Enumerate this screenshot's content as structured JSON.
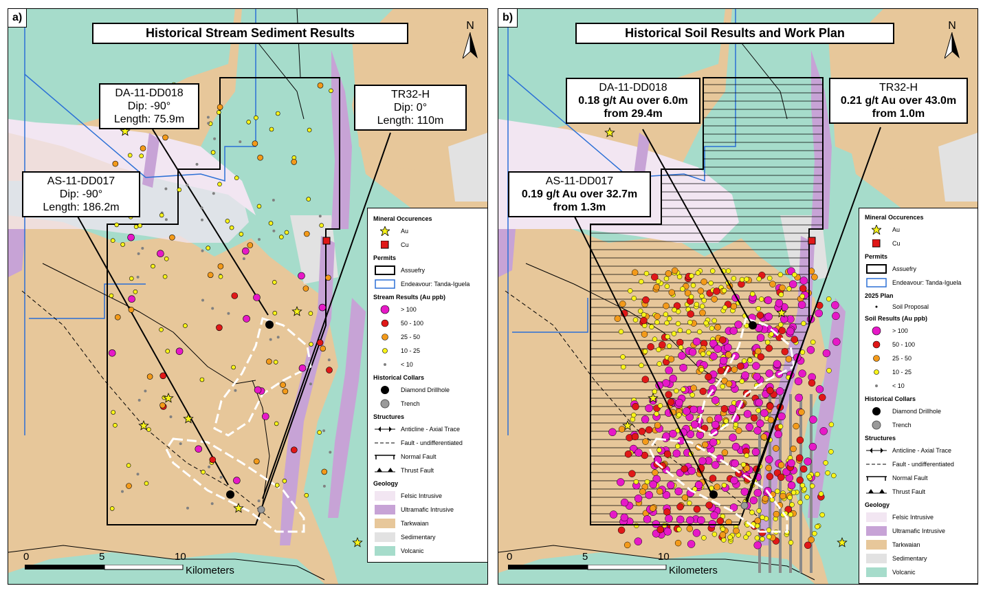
{
  "colors": {
    "tarkwaian": "#e7c79a",
    "volcanic": "#a6dccb",
    "felsic": "#f2e6f2",
    "ultramafic": "#c7a3d6",
    "sedimentary": "#e2e2e2",
    "gt100": "#e619c7",
    "c50_100": "#e01818",
    "c25_50": "#f39a1a",
    "c10_25": "#f8f41a",
    "lt10": "#808080",
    "permit_endeavour": "#2a6fd6"
  },
  "panel_a": {
    "tag": "a)",
    "title": "Historical Stream Sediment Results",
    "north": "N",
    "callouts": {
      "da": {
        "name": "DA-11-DD018",
        "l2": "Dip: -90°",
        "l3": "Length: 75.9m"
      },
      "tr": {
        "name": "TR32-H",
        "l2": "Dip: 0°",
        "l3": "Length: 110m"
      },
      "as": {
        "name": "AS-11-DD017",
        "l2": "Dip: -90°",
        "l3": "Length: 186.2m"
      }
    },
    "legend": {
      "mineral_header": "Mineral Occurences",
      "au": "Au",
      "cu": "Cu",
      "permits_header": "Permits",
      "assuefry": "Assuefry",
      "endeavour": "Endeavour: Tanda-Iguela",
      "results_header": "Stream Results (Au ppb)",
      "r1": "> 100",
      "r2": "50 - 100",
      "r3": "25 - 50",
      "r4": "10 - 25",
      "r5": "< 10",
      "collars_header": "Historical Collars",
      "diamond": "Diamond Drillhole",
      "trench": "Trench",
      "structures_header": "Structures",
      "anticline": "Anticline - Axial Trace",
      "fault": "Fault - undifferentiated",
      "normal": "Normal Fault",
      "thrust": "Thrust Fault",
      "geology_header": "Geology",
      "felsic": "Felsic Intrusive",
      "ultramafic": "Ultramafic Intrusive",
      "tarkwaian": "Tarkwaian",
      "sedimentary": "Sedimentary",
      "volcanic": "Volcanic"
    },
    "scale": {
      "s0": "0",
      "s5": "5",
      "s10": "10",
      "unit": "Kilometers"
    }
  },
  "panel_b": {
    "tag": "b)",
    "title": "Historical Soil Results and Work Plan",
    "north": "N",
    "callouts": {
      "da": {
        "name": "DA-11-DD018",
        "l2": "0.18 g/t Au over 6.0m",
        "l3": "from 29.4m"
      },
      "tr": {
        "name": "TR32-H",
        "l2": "0.21 g/t Au over 43.0m",
        "l3": "from 1.0m"
      },
      "as": {
        "name": "AS-11-DD017",
        "l2": "0.19 g/t Au over 32.7m",
        "l3": "from 1.3m"
      }
    },
    "legend": {
      "mineral_header": "Mineral Occurences",
      "au": "Au",
      "cu": "Cu",
      "permits_header": "Permits",
      "assuefry": "Assuefry",
      "endeavour": "Endeavour: Tanda-Iguela",
      "plan_header": "2025 Plan",
      "soil_proposal": "Soil Proposal",
      "results_header": "Soil Results (Au ppb)",
      "r1": "> 100",
      "r2": "50 - 100",
      "r3": "25 - 50",
      "r4": "10 - 25",
      "r5": "< 10",
      "collars_header": "Historical Collars",
      "diamond": "Diamond Drillhole",
      "trench": "Trench",
      "structures_header": "Structures",
      "anticline": "Anticline - Axial Trace",
      "fault": "Fault - undifferentiated",
      "normal": "Normal Fault",
      "thrust": "Thrust Fault",
      "geology_header": "Geology",
      "felsic": "Felsic Intrusive",
      "ultramafic": "Ultramafic Intrusive",
      "tarkwaian": "Tarkwaian",
      "sedimentary": "Sedimentary",
      "volcanic": "Volcanic"
    },
    "scale": {
      "s0": "0",
      "s5": "5",
      "s10": "10",
      "unit": "Kilometers"
    }
  }
}
